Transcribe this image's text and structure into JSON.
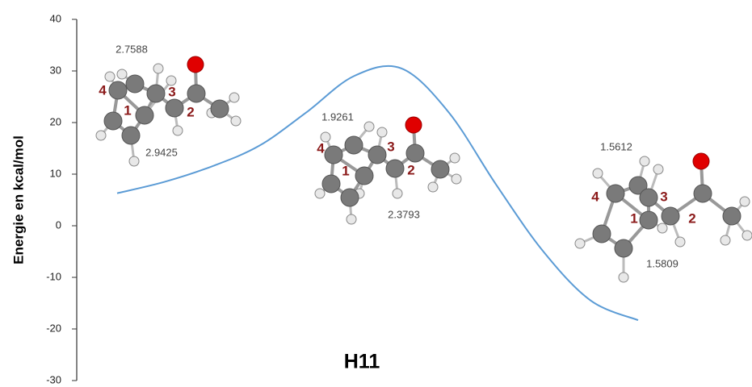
{
  "chart_data": {
    "type": "line",
    "title": "H11",
    "y_label": "Energie en kcal/mol",
    "categories": [
      null,
      null,
      null,
      null,
      null,
      null,
      null,
      null,
      null,
      null,
      null,
      null
    ],
    "values": [
      6.3,
      8.5,
      11.5,
      15.5,
      22,
      29,
      30.5,
      22,
      8,
      -5,
      -14.5,
      -18.3
    ],
    "color": "#5b9bd5",
    "ylim": [
      -30,
      40
    ],
    "yticks": [
      -30,
      -20,
      -10,
      0,
      10,
      20,
      30,
      40
    ],
    "structures": [
      {
        "labels": [
          "4",
          "1",
          "3",
          "2"
        ],
        "distances": [
          "2.7588",
          "2.9425"
        ]
      },
      {
        "labels": [
          "4",
          "1",
          "3",
          "2"
        ],
        "distances": [
          "1.9261",
          "2.3793"
        ]
      },
      {
        "labels": [
          "4",
          "1",
          "3",
          "2"
        ],
        "distances": [
          "1.5612",
          "1.5809"
        ]
      }
    ]
  }
}
